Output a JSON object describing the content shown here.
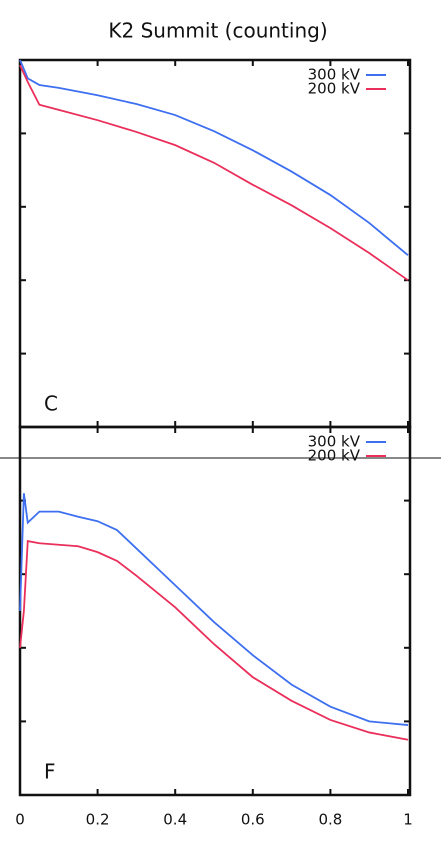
{
  "chart_data": [
    {
      "type": "line",
      "title": "K2 Summit (counting)",
      "panel_label": "C",
      "x": [
        0,
        0.02,
        0.05,
        0.1,
        0.2,
        0.3,
        0.4,
        0.5,
        0.6,
        0.7,
        0.8,
        0.9,
        1.0
      ],
      "series": [
        {
          "name": "300 kV",
          "color": "#3d6ff0",
          "values": [
            5.0,
            4.75,
            4.66,
            4.62,
            4.52,
            4.4,
            4.25,
            4.03,
            3.77,
            3.48,
            3.16,
            2.78,
            2.34
          ]
        },
        {
          "name": "200 kV",
          "color": "#ea2f5a",
          "values": [
            4.93,
            4.7,
            4.39,
            4.32,
            4.18,
            4.02,
            3.84,
            3.6,
            3.3,
            3.02,
            2.71,
            2.37,
            2.0
          ]
        }
      ],
      "xlim": [
        0,
        1
      ],
      "xticks": [
        0,
        0.2,
        0.4,
        0.6,
        0.8,
        1
      ],
      "ylim": [
        0,
        5
      ],
      "yticks": [
        1,
        2,
        3,
        4
      ]
    },
    {
      "type": "line",
      "panel_label": "F",
      "x": [
        0,
        0.01,
        0.02,
        0.05,
        0.1,
        0.15,
        0.2,
        0.25,
        0.3,
        0.4,
        0.5,
        0.6,
        0.7,
        0.8,
        0.9,
        1.0
      ],
      "series": [
        {
          "name": "300 kV",
          "color": "#3d6ff0",
          "values": [
            2.5,
            4.1,
            3.7,
            3.85,
            3.85,
            3.78,
            3.72,
            3.6,
            3.35,
            2.85,
            2.35,
            1.9,
            1.5,
            1.2,
            1.0,
            0.95
          ]
        },
        {
          "name": "200 kV",
          "color": "#ea2f5a",
          "values": [
            2.0,
            2.5,
            3.45,
            3.42,
            3.4,
            3.38,
            3.3,
            3.18,
            2.98,
            2.55,
            2.05,
            1.6,
            1.28,
            1.02,
            0.85,
            0.75
          ]
        }
      ],
      "xlim": [
        0,
        1
      ],
      "xticks": [
        0,
        0.2,
        0.4,
        0.6,
        0.8,
        1
      ],
      "ylim": [
        0,
        5
      ],
      "yticks": [
        1,
        2,
        3,
        4
      ],
      "xtick_labels": true
    }
  ]
}
